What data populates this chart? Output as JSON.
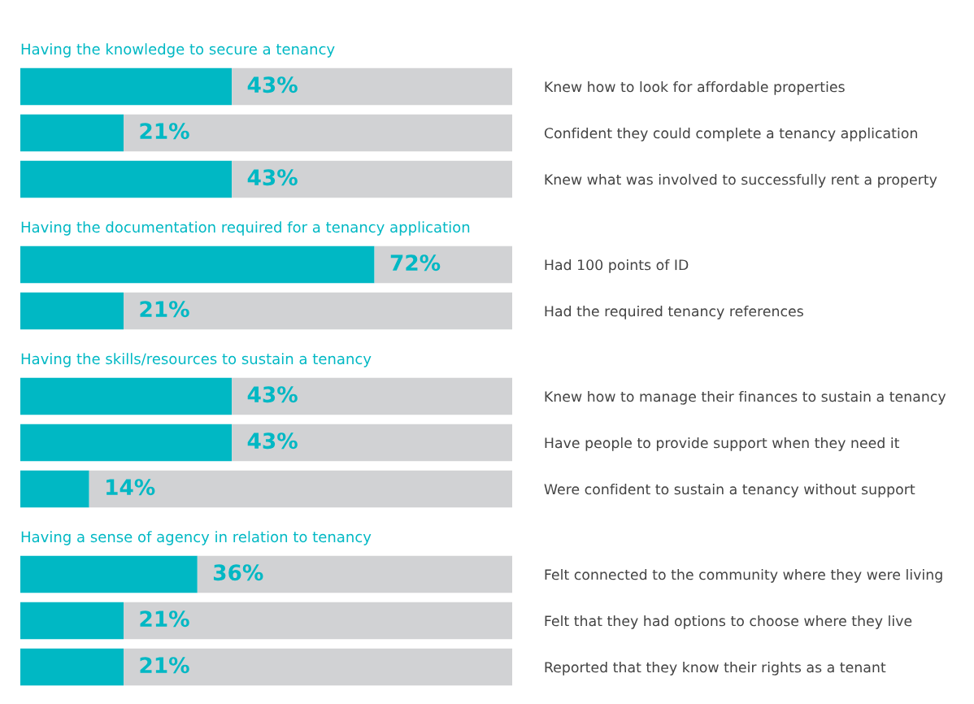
{
  "chart_data": [
    {
      "type": "bar",
      "orientation": "horizontal",
      "stacked": true,
      "title": "Having the knowledge to secure a tenancy",
      "categories": [
        "Knew how to look for affordable properties",
        "Confident they could complete a tenancy application",
        "Knew what was involved to successfully rent a property"
      ],
      "xlim": [
        0,
        100
      ],
      "tick_labels": "y",
      "grid": false,
      "legend": false,
      "series": [
        {
          "color": "#00b8c4",
          "values": [
            43,
            21,
            43
          ],
          "value_labels": [
            "43%",
            "21%",
            "43%"
          ]
        },
        {
          "color": "#d1d2d4",
          "values": [
            57,
            79,
            57
          ]
        }
      ]
    },
    {
      "type": "bar",
      "orientation": "horizontal",
      "stacked": true,
      "title": "Having the documentation required for a tenancy application",
      "categories": [
        "Had 100 points of ID",
        "Had the required tenancy references"
      ],
      "xlim": [
        0,
        100
      ],
      "tick_labels": "y",
      "grid": false,
      "legend": false,
      "series": [
        {
          "color": "#00b8c4",
          "values": [
            72,
            21
          ],
          "value_labels": [
            "72%",
            "21%"
          ]
        },
        {
          "color": "#d1d2d4",
          "values": [
            28,
            79
          ]
        }
      ]
    },
    {
      "type": "bar",
      "orientation": "horizontal",
      "stacked": true,
      "title": "Having the skills/resources to sustain a tenancy",
      "categories": [
        "Knew how to manage their finances to sustain a tenancy",
        "Have people to provide support when they need it",
        "Were confident to sustain a tenancy without support"
      ],
      "xlim": [
        0,
        100
      ],
      "tick_labels": "y",
      "grid": false,
      "legend": false,
      "series": [
        {
          "color": "#00b8c4",
          "values": [
            43,
            43,
            14
          ],
          "value_labels": [
            "43%",
            "43%",
            "14%"
          ]
        },
        {
          "color": "#d1d2d4",
          "values": [
            57,
            57,
            86
          ]
        }
      ]
    },
    {
      "type": "bar",
      "orientation": "horizontal",
      "stacked": true,
      "title": "Having a sense of agency in relation to tenancy",
      "categories": [
        "Felt connected to the community where they were living",
        "Felt that they had options to choose where they live",
        "Reported that they know their rights as a tenant"
      ],
      "xlim": [
        0,
        100
      ],
      "tick_labels": "y",
      "grid": false,
      "legend": false,
      "series": [
        {
          "color": "#00b8c4",
          "values": [
            36,
            21,
            21
          ],
          "value_labels": [
            "36%",
            "21%",
            "21%"
          ]
        },
        {
          "color": "#d1d2d4",
          "values": [
            64,
            79,
            79
          ]
        }
      ]
    }
  ]
}
